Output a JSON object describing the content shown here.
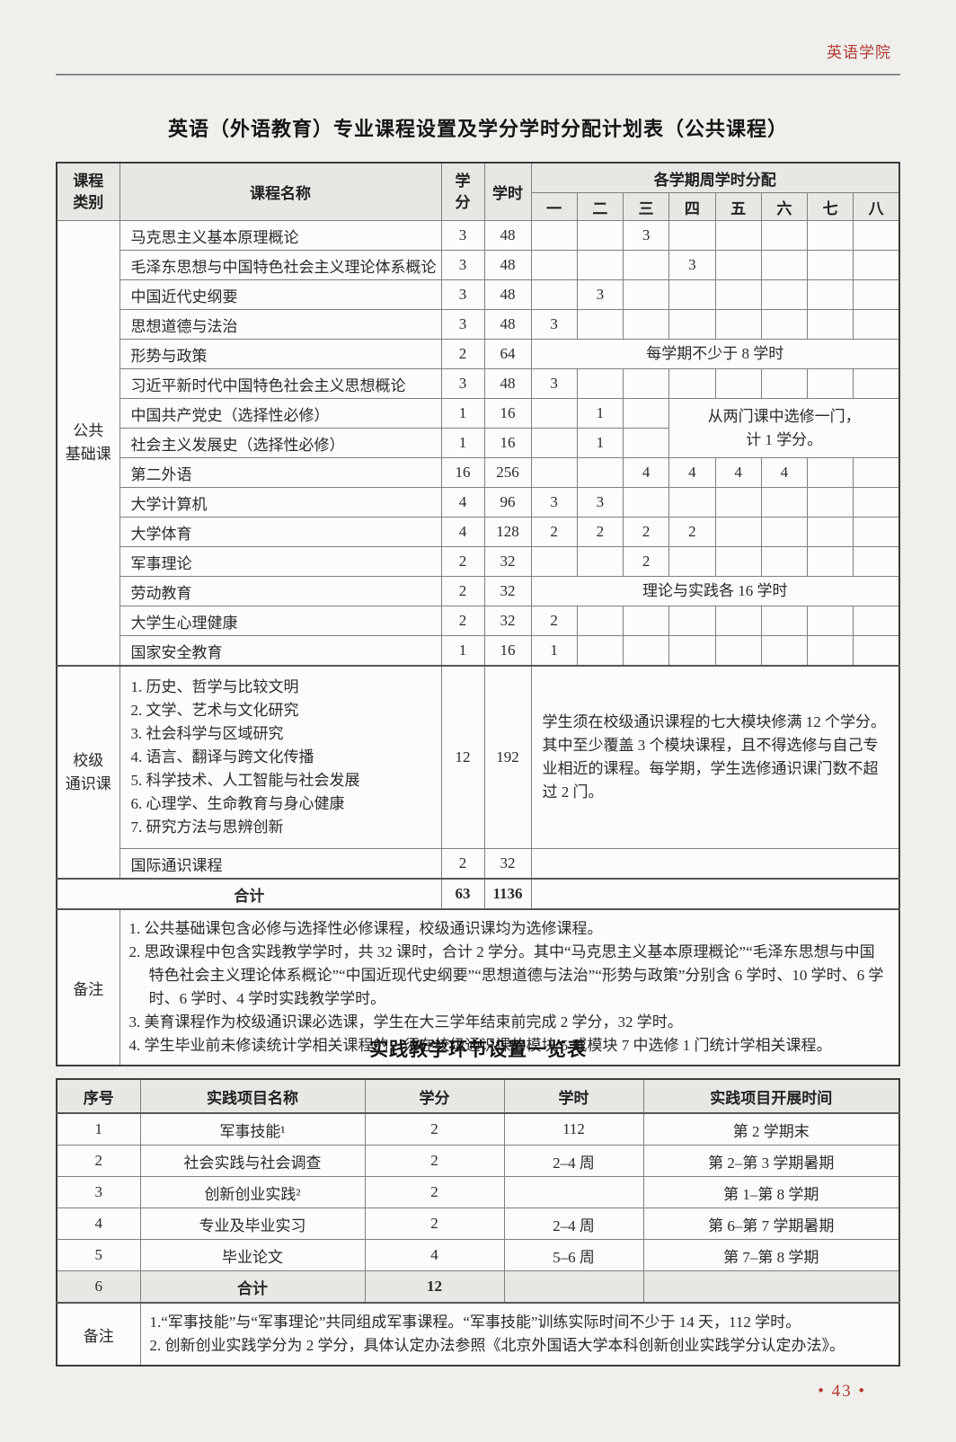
{
  "page": {
    "institution": "英语学院",
    "page_number": "• 43 •",
    "accent_color": "#b23a32"
  },
  "course_table": {
    "title": "英语（外语教育）专业课程设置及学分学时分配计划表（公共课程）",
    "headers": {
      "category": "课程\n类别",
      "name": "课程名称",
      "credits": "学\n分",
      "hours": "学时",
      "weekly": "各学期周学时分配"
    },
    "semesters": [
      "一",
      "二",
      "三",
      "四",
      "五",
      "六",
      "七",
      "八"
    ],
    "rows": [
      {
        "cells": [
          [
            "公共\n基础课",
            1,
            15,
            "cat"
          ],
          [
            "马克思主义基本原理概论",
            1,
            1,
            "name"
          ],
          [
            "3"
          ],
          [
            "48"
          ],
          [
            ""
          ],
          [
            ""
          ],
          [
            "3"
          ],
          [
            ""
          ],
          [
            ""
          ],
          [
            ""
          ],
          [
            ""
          ],
          [
            ""
          ]
        ]
      },
      {
        "cells": [
          [
            "毛泽东思想与中国特色社会主义理论体系概论",
            1,
            1,
            "name"
          ],
          [
            "3"
          ],
          [
            "48"
          ],
          [
            ""
          ],
          [
            ""
          ],
          [
            ""
          ],
          [
            "3"
          ],
          [
            ""
          ],
          [
            ""
          ],
          [
            ""
          ],
          [
            ""
          ]
        ]
      },
      {
        "cells": [
          [
            "中国近代史纲要",
            1,
            1,
            "name"
          ],
          [
            "3"
          ],
          [
            "48"
          ],
          [
            ""
          ],
          [
            "3"
          ],
          [
            ""
          ],
          [
            ""
          ],
          [
            ""
          ],
          [
            ""
          ],
          [
            ""
          ],
          [
            ""
          ]
        ]
      },
      {
        "cells": [
          [
            "思想道德与法治",
            1,
            1,
            "name"
          ],
          [
            "3"
          ],
          [
            "48"
          ],
          [
            "3"
          ],
          [
            ""
          ],
          [
            ""
          ],
          [
            ""
          ],
          [
            ""
          ],
          [
            ""
          ],
          [
            ""
          ],
          [
            ""
          ]
        ]
      },
      {
        "cells": [
          [
            "形势与政策",
            1,
            1,
            "name"
          ],
          [
            "2"
          ],
          [
            "64"
          ],
          [
            "每学期不少于 8 学时",
            8,
            1,
            "span-center"
          ]
        ]
      },
      {
        "cells": [
          [
            "习近平新时代中国特色社会主义思想概论",
            1,
            1,
            "name"
          ],
          [
            "3"
          ],
          [
            "48"
          ],
          [
            "3"
          ],
          [
            ""
          ],
          [
            ""
          ],
          [
            ""
          ],
          [
            ""
          ],
          [
            ""
          ],
          [
            ""
          ],
          [
            ""
          ]
        ]
      },
      {
        "cells": [
          [
            "中国共产党史（选择性必修）",
            1,
            1,
            "name"
          ],
          [
            "1"
          ],
          [
            "16"
          ],
          [
            ""
          ],
          [
            "1"
          ],
          [
            ""
          ],
          [
            "从两门课中选修一门，\n计 1 学分。",
            5,
            2,
            "span-center"
          ]
        ]
      },
      {
        "cells": [
          [
            "社会主义发展史（选择性必修）",
            1,
            1,
            "name"
          ],
          [
            "1"
          ],
          [
            "16"
          ],
          [
            ""
          ],
          [
            "1"
          ],
          [
            ""
          ]
        ]
      },
      {
        "cells": [
          [
            "第二外语",
            1,
            1,
            "name"
          ],
          [
            "16"
          ],
          [
            "256"
          ],
          [
            ""
          ],
          [
            ""
          ],
          [
            "4"
          ],
          [
            "4"
          ],
          [
            "4"
          ],
          [
            "4"
          ],
          [
            ""
          ],
          [
            ""
          ]
        ]
      },
      {
        "cells": [
          [
            "大学计算机",
            1,
            1,
            "name"
          ],
          [
            "4"
          ],
          [
            "96"
          ],
          [
            "3"
          ],
          [
            "3"
          ],
          [
            ""
          ],
          [
            ""
          ],
          [
            ""
          ],
          [
            ""
          ],
          [
            ""
          ],
          [
            ""
          ]
        ]
      },
      {
        "cells": [
          [
            "大学体育",
            1,
            1,
            "name"
          ],
          [
            "4"
          ],
          [
            "128"
          ],
          [
            "2"
          ],
          [
            "2"
          ],
          [
            "2"
          ],
          [
            "2"
          ],
          [
            ""
          ],
          [
            ""
          ],
          [
            ""
          ],
          [
            ""
          ]
        ]
      },
      {
        "cells": [
          [
            "军事理论",
            1,
            1,
            "name"
          ],
          [
            "2"
          ],
          [
            "32"
          ],
          [
            ""
          ],
          [
            ""
          ],
          [
            "2"
          ],
          [
            ""
          ],
          [
            ""
          ],
          [
            ""
          ],
          [
            ""
          ],
          [
            ""
          ]
        ]
      },
      {
        "cells": [
          [
            "劳动教育",
            1,
            1,
            "name"
          ],
          [
            "2"
          ],
          [
            "32"
          ],
          [
            "理论与实践各 16 学时",
            8,
            1,
            "span-center"
          ]
        ]
      },
      {
        "cells": [
          [
            "大学生心理健康",
            1,
            1,
            "name"
          ],
          [
            "2"
          ],
          [
            "32"
          ],
          [
            "2"
          ],
          [
            ""
          ],
          [
            ""
          ],
          [
            ""
          ],
          [
            ""
          ],
          [
            ""
          ],
          [
            ""
          ],
          [
            ""
          ]
        ]
      },
      {
        "cells": [
          [
            "国家安全教育",
            1,
            1,
            "name"
          ],
          [
            "1"
          ],
          [
            "16"
          ],
          [
            "1"
          ],
          [
            ""
          ],
          [
            ""
          ],
          [
            ""
          ],
          [
            ""
          ],
          [
            ""
          ],
          [
            ""
          ],
          [
            ""
          ]
        ]
      },
      {
        "cls": "sect",
        "cells": [
          [
            "校级\n通识课",
            1,
            2,
            "cat"
          ],
          [
            "1. 历史、哲学与比较文明\n2. 文学、艺术与文化研究\n3. 社会科学与区域研究\n4. 语言、翻译与跨文化传播\n5. 科学技术、人工智能与社会发展\n6. 心理学、生命教育与身心健康\n7. 研究方法与思辨创新",
            1,
            1,
            "modules"
          ],
          [
            "12"
          ],
          [
            "192"
          ],
          [
            "学生须在校级通识课程的七大模块修满 12 个学分。其中至少覆盖 3 个模块课程，且不得选修与自己专业相近的课程。每学期，学生选修通识课门数不超过 2 门。",
            8,
            1,
            "span-left"
          ]
        ]
      },
      {
        "cells": [
          [
            "国际通识课程",
            1,
            1,
            "name"
          ],
          [
            "2"
          ],
          [
            "32"
          ],
          [
            "",
            8,
            1,
            ""
          ]
        ]
      },
      {
        "cls": "sect",
        "cells": [
          [
            "合计",
            2,
            1,
            "total-label"
          ],
          [
            "63",
            1,
            1,
            "bold"
          ],
          [
            "1136",
            1,
            1,
            "bold"
          ],
          [
            "",
            8,
            1,
            ""
          ]
        ]
      },
      {
        "cls": "sect",
        "cells": [
          [
            "备注",
            1,
            1,
            "notes-label"
          ],
          [
            "1. 公共基础课包含必修与选择性必修课程，校级通识课均为选修课程。\n2. 思政课程中包含实践教学学时，共 32 课时，合计 2 学分。其中“马克思主义基本原理概论”“毛泽东思想与中国特色社会主义理论体系概论”“中国近现代史纲要”“思想道德与法治”“形势与政策”分别含 6 学时、10 学时、6 学时、6 学时、4 学时实践教学学时。\n3. 美育课程作为校级通识课必选课，学生在大三学年结束前完成 2 学分，32 学时。\n4. 学生毕业前未修读统计学相关课程的，须在校级通识课的模块 5 或模块 7 中选修 1 门统计学相关课程。",
            11,
            1,
            "notes"
          ]
        ]
      }
    ]
  },
  "practice_table": {
    "title": "实践教学环节设置一览表",
    "headers": [
      "序号",
      "实践项目名称",
      "学分",
      "学时",
      "实践项目开展时间"
    ],
    "rows": [
      {
        "cells": [
          [
            "1"
          ],
          [
            "军事技能¹"
          ],
          [
            "2"
          ],
          [
            "112"
          ],
          [
            "第 2 学期末"
          ]
        ]
      },
      {
        "cells": [
          [
            "2"
          ],
          [
            "社会实践与社会调查"
          ],
          [
            "2"
          ],
          [
            "2–4 周"
          ],
          [
            "第 2–第 3 学期暑期"
          ]
        ]
      },
      {
        "cells": [
          [
            "3"
          ],
          [
            "创新创业实践²"
          ],
          [
            "2"
          ],
          [
            ""
          ],
          [
            "第 1–第 8 学期"
          ]
        ]
      },
      {
        "cells": [
          [
            "4"
          ],
          [
            "专业及毕业实习"
          ],
          [
            "2"
          ],
          [
            "2–4 周"
          ],
          [
            "第 6–第 7 学期暑期"
          ]
        ]
      },
      {
        "cells": [
          [
            "5"
          ],
          [
            "毕业论文"
          ],
          [
            "4"
          ],
          [
            "5–6 周"
          ],
          [
            "第 7–第 8 学期"
          ]
        ]
      },
      {
        "cls": "gray",
        "cells": [
          [
            "6"
          ],
          [
            "合计",
            1,
            1,
            "total-label"
          ],
          [
            "12",
            1,
            1,
            "bold"
          ],
          [
            ""
          ],
          [
            ""
          ]
        ]
      },
      {
        "cls": "sect",
        "cells": [
          [
            "备注",
            1,
            1,
            "notes-label"
          ],
          [
            "1.“军事技能”与“军事理论”共同组成军事课程。“军事技能”训练实际时间不少于 14 天，112 学时。\n2. 创新创业实践学分为 2 学分，具体认定办法参照《北京外国语大学本科创新创业实践学分认定办法》。",
            4,
            1,
            "notes"
          ]
        ]
      }
    ]
  }
}
